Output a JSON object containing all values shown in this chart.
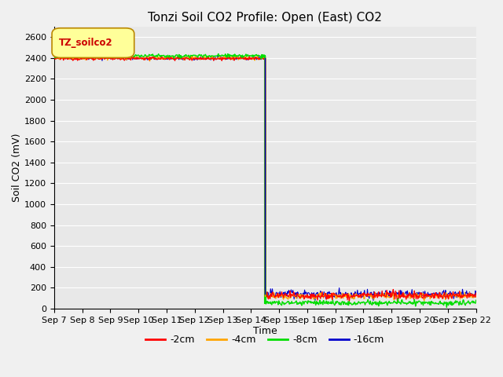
{
  "title": "Tonzi Soil CO2 Profile: Open (East) CO2",
  "xlabel": "Time",
  "ylabel": "Soil CO2 (mV)",
  "ylim": [
    0,
    2700
  ],
  "yticks": [
    0,
    200,
    400,
    600,
    800,
    1000,
    1200,
    1400,
    1600,
    1800,
    2000,
    2200,
    2400,
    2600
  ],
  "x_labels": [
    "Sep 7",
    "Sep 8",
    "Sep 9",
    "Sep 10",
    "Sep 11",
    "Sep 12",
    "Sep 13",
    "Sep 14",
    "Sep 15",
    "Sep 16",
    "Sep 17",
    "Sep 18",
    "Sep 19",
    "Sep 20",
    "Sep 21",
    "Sep 22"
  ],
  "legend_label": "TZ_soilco2",
  "series_labels": [
    "-2cm",
    "-4cm",
    "-8cm",
    "-16cm"
  ],
  "series_colors": [
    "#ff0000",
    "#ffa500",
    "#00dd00",
    "#0000cc"
  ],
  "drop_day": 7.5,
  "val_before_2cm": 2395,
  "val_before_4cm": 2400,
  "val_before_8cm": 2420,
  "val_before_16cm": 2398,
  "val_after_2cm": 125,
  "val_after_4cm": 120,
  "val_after_8cm": 55,
  "val_after_16cm": 140,
  "noise_before": 8,
  "noise_after_red": 18,
  "noise_after_orange": 16,
  "noise_after_green": 12,
  "noise_after_blue": 20,
  "plot_bg_color": "#e8e8e8",
  "fig_bg_color": "#f0f0f0",
  "grid_color": "#ffffff",
  "legend_box_facecolor": "#ffff99",
  "legend_box_edgecolor": "#bb8800",
  "legend_text_color": "#cc0000",
  "title_fontsize": 11,
  "axis_label_fontsize": 9,
  "tick_fontsize": 8,
  "legend_fontsize": 9
}
